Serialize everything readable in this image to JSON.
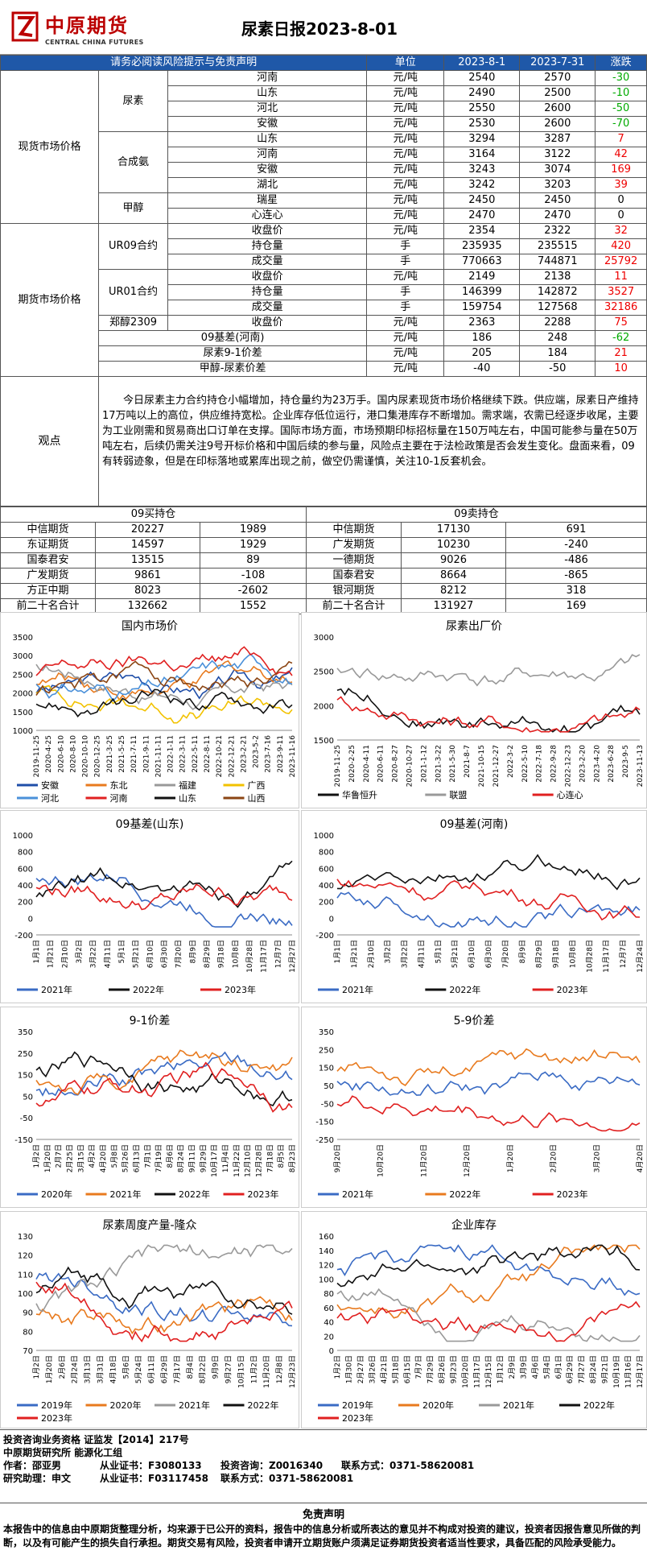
{
  "header": {
    "logo_cn": "中原期货",
    "logo_en": "CENTRAL CHINA FUTURES",
    "title": "尿素日报2023-8-01"
  },
  "table_head": {
    "notice": "请务必阅读风险提示与免责声明",
    "unit": "单位",
    "d1": "2023-8-1",
    "d2": "2023-7-31",
    "chg": "涨跌"
  },
  "spot": {
    "label": "现货市场价格",
    "groups": [
      {
        "name": "尿素",
        "rows": [
          [
            "河南",
            "元/吨",
            "2540",
            "2570",
            "-30"
          ],
          [
            "山东",
            "元/吨",
            "2490",
            "2500",
            "-10"
          ],
          [
            "河北",
            "元/吨",
            "2550",
            "2600",
            "-50"
          ],
          [
            "安徽",
            "元/吨",
            "2530",
            "2600",
            "-70"
          ]
        ]
      },
      {
        "name": "合成氨",
        "rows": [
          [
            "山东",
            "元/吨",
            "3294",
            "3287",
            "7"
          ],
          [
            "河南",
            "元/吨",
            "3164",
            "3122",
            "42"
          ],
          [
            "安徽",
            "元/吨",
            "3243",
            "3074",
            "169"
          ],
          [
            "湖北",
            "元/吨",
            "3242",
            "3203",
            "39"
          ]
        ]
      },
      {
        "name": "甲醇",
        "rows": [
          [
            "瑞星",
            "元/吨",
            "2450",
            "2450",
            "0"
          ],
          [
            "心连心",
            "元/吨",
            "2470",
            "2470",
            "0"
          ]
        ]
      }
    ]
  },
  "fut": {
    "label": "期货市场价格",
    "groups": [
      {
        "name": "UR09合约",
        "rows": [
          [
            "收盘价",
            "元/吨",
            "2354",
            "2322",
            "32"
          ],
          [
            "持仓量",
            "手",
            "235935",
            "235515",
            "420"
          ],
          [
            "成交量",
            "手",
            "770663",
            "744871",
            "25792"
          ]
        ]
      },
      {
        "name": "UR01合约",
        "rows": [
          [
            "收盘价",
            "元/吨",
            "2149",
            "2138",
            "11"
          ],
          [
            "持仓量",
            "手",
            "146399",
            "142872",
            "3527"
          ],
          [
            "成交量",
            "手",
            "159754",
            "127568",
            "32186"
          ]
        ]
      },
      {
        "name": "郑醇2309",
        "rows": [
          [
            "收盘价",
            "元/吨",
            "2363",
            "2288",
            "75"
          ]
        ]
      }
    ],
    "extra": [
      [
        "09基差(河南)",
        "元/吨",
        "186",
        "248",
        "-62"
      ],
      [
        "尿素9-1价差",
        "元/吨",
        "205",
        "184",
        "21"
      ],
      [
        "甲醇-尿素价差",
        "元/吨",
        "-40",
        "-50",
        "10"
      ]
    ]
  },
  "observation": {
    "label": "观点",
    "text": "今日尿素主力合约持仓小幅增加，持仓量约为23万手。国内尿素现货市场价格继续下跌。供应端，尿素日产维持17万吨以上的高位，供应维持宽松。企业库存低位运行，港口集港库存不断增加。需求端，农需已经逐步收尾，主要为工业刚需和贸易商出口订单在支撑。国际市场方面，市场预期印标招标量在150万吨左右，中国可能参与量在50万吨左右，后续仍需关注9号开标价格和中国后续的参与量，风险点主要在于法检政策是否会发生变化。盘面来看，09有转弱迹象，但是在印标落地或累库出现之前，做空仍需谨慎，关注10-1反套机会。"
  },
  "positions": {
    "buy_title": "09买持仓",
    "sell_title": "09卖持仓",
    "rows": [
      [
        "中信期货",
        "20227",
        "1989",
        "中信期货",
        "17130",
        "691"
      ],
      [
        "东证期货",
        "14597",
        "1929",
        "广发期货",
        "10230",
        "-240"
      ],
      [
        "国泰君安",
        "13515",
        "89",
        "一德期货",
        "9026",
        "-486"
      ],
      [
        "广发期货",
        "9861",
        "-108",
        "国泰君安",
        "8664",
        "-865"
      ],
      [
        "方正中期",
        "8023",
        "-2602",
        "银河期货",
        "8212",
        "318"
      ],
      [
        "前二十名合计",
        "132662",
        "1552",
        "前二十名合计",
        "131927",
        "169"
      ]
    ]
  },
  "charts": [
    {
      "title": "国内市场价",
      "yticks": [
        "1000",
        "1500",
        "2000",
        "2500",
        "3000",
        "3500"
      ],
      "xticks": [
        "2019-11-25",
        "2020-4-25",
        "2020-7-25",
        "2020-10-25",
        "2021-1-25",
        "2021-4-25",
        "2021-7-25",
        "2021-10-25",
        "2022-1-25",
        "2022-4-25",
        "2022-7-25",
        "2022-10-25",
        "2023-1-25",
        "2023-4-25",
        "2023-7-25",
        "2023-10-25"
      ],
      "xticks_show": [
        "2019-11-25",
        "2020-4-25",
        "2020-6-10",
        "2020-8-10",
        "2020-10-10",
        "2020-12-25",
        "2021-3-25",
        "2021-5-25",
        "2021-7-11",
        "2021-9-11",
        "2021-11-11",
        "2022-1-11",
        "2022-3-11",
        "2022-5-11",
        "2022-8-11",
        "2022-10-21",
        "2022-12-21",
        "2023-2-21",
        "2023-5-2",
        "2023-7-16",
        "2023-9-11",
        "2023-11-16"
      ],
      "legend": [
        [
          "安徽",
          "#1f4ea8"
        ],
        [
          "东北",
          "#e87a1e"
        ],
        [
          "福建",
          "#999999"
        ],
        [
          "广西",
          "#f2c200"
        ],
        [
          "河北",
          "#4a90d9"
        ],
        [
          "河南",
          "#e02020"
        ],
        [
          "山东",
          "#111111"
        ],
        [
          "山西",
          "#8b4513"
        ]
      ]
    },
    {
      "title": "尿素出厂价",
      "yticks": [
        "1500",
        "2000",
        "2500",
        "3000"
      ],
      "xticks_show": [
        "2019-11-25",
        "2020-2-25",
        "2020-4-11",
        "2020-6-11",
        "2020-8-27",
        "2020-10-27",
        "2021-1-12",
        "2021-3-22",
        "2021-5-30",
        "2021-8-7",
        "2021-10-15",
        "2021-12-27",
        "2022-3-2",
        "2022-5-10",
        "2022-7-18",
        "2022-9-28",
        "2022-12-23",
        "2023-2-20",
        "2023-4-20",
        "2023-6-28",
        "2023-9-5",
        "2023-11-13"
      ],
      "legend": [
        [
          "华鲁恒升",
          "#111111"
        ],
        [
          "联盟",
          "#999999"
        ],
        [
          "心连心",
          "#e02020"
        ]
      ]
    },
    {
      "title": "09基差(山东)",
      "yticks": [
        "-200",
        "0",
        "200",
        "400",
        "600",
        "800",
        "1000"
      ],
      "xticks_show": [
        "1月1日",
        "1月21日",
        "2月10日",
        "3月2日",
        "3月22日",
        "4月11日",
        "5月1日",
        "5月21日",
        "6月10日",
        "6月30日",
        "7月20日",
        "8月9日",
        "8月29日",
        "9月18日",
        "10月8日",
        "10月28日",
        "11月17日",
        "12月7日",
        "12月27日"
      ],
      "legend": [
        [
          "2021年",
          "#3a6bc4"
        ],
        [
          "2022年",
          "#111111"
        ],
        [
          "2023年",
          "#e02020"
        ]
      ]
    },
    {
      "title": "09基差(河南)",
      "yticks": [
        "-200",
        "0",
        "200",
        "400",
        "600",
        "800",
        "1000"
      ],
      "xticks_show": [
        "1月1日",
        "1月21日",
        "2月10日",
        "3月2日",
        "3月22日",
        "4月11日",
        "5月1日",
        "5月21日",
        "6月10日",
        "6月30日",
        "7月20日",
        "8月9日",
        "8月29日",
        "9月18日",
        "10月8日",
        "10月28日",
        "11月17日",
        "12月7日",
        "12月24日"
      ],
      "legend": [
        [
          "2021年",
          "#3a6bc4"
        ],
        [
          "2022年",
          "#111111"
        ],
        [
          "2023年",
          "#e02020"
        ]
      ]
    },
    {
      "title": "9-1价差",
      "yticks": [
        "-150",
        "-50",
        "50",
        "150",
        "250",
        "350"
      ],
      "xticks_show": [
        "1月2日",
        "1月20日",
        "2月7日",
        "2月25日",
        "3月15日",
        "4月2日",
        "4月20日",
        "5月8日",
        "5月26日",
        "6月13日",
        "7月1日",
        "7月19日",
        "8月6日",
        "8月24日",
        "9月11日",
        "9月29日",
        "10月17日",
        "11月4日",
        "11月22日",
        "12月10日",
        "12月28日",
        "7月18日",
        "8月5日",
        "8月23日"
      ],
      "legend": [
        [
          "2020年",
          "#3a6bc4"
        ],
        [
          "2021年",
          "#e87a1e"
        ],
        [
          "2022年",
          "#111111"
        ],
        [
          "2023年",
          "#e02020"
        ]
      ]
    },
    {
      "title": "5-9价差",
      "yticks": [
        "-250",
        "-150",
        "-50",
        "50",
        "150",
        "250",
        "350"
      ],
      "xticks_show": [
        "9月20日",
        "10月20日",
        "11月20日",
        "12月20日",
        "1月20日",
        "2月20日",
        "3月20日",
        "4月20日"
      ],
      "legend": [
        [
          "2021年",
          "#3a6bc4"
        ],
        [
          "2022年",
          "#e87a1e"
        ],
        [
          "2023年",
          "#e02020"
        ]
      ]
    },
    {
      "title": "尿素周度产量-隆众",
      "yticks": [
        "70",
        "80",
        "90",
        "100",
        "110",
        "120",
        "130"
      ],
      "xticks_show": [
        "1月2日",
        "1月20日",
        "2月6日",
        "2月24日",
        "3月13日",
        "3月31日",
        "4月18日",
        "5月6日",
        "5月24日",
        "6月11日",
        "6月29日",
        "7月17日",
        "8月4日",
        "8月22日",
        "9月9日",
        "9月27日",
        "10月15日",
        "11月2日",
        "11月20日",
        "12月8日",
        "12月23日"
      ],
      "legend": [
        [
          "2019年",
          "#3a6bc4"
        ],
        [
          "2020年",
          "#e87a1e"
        ],
        [
          "2021年",
          "#999999"
        ],
        [
          "2022年",
          "#111111"
        ],
        [
          "2023年",
          "#e02020"
        ]
      ]
    },
    {
      "title": "企业库存",
      "yticks": [
        "0",
        "20",
        "40",
        "60",
        "80",
        "100",
        "120",
        "140",
        "160"
      ],
      "xticks_show": [
        "1月2日",
        "1月30日",
        "2月27日",
        "3月26日",
        "4月21日",
        "5月18日",
        "6月15日",
        "7月7日",
        "7月29日",
        "8月26日",
        "9月23日",
        "10月20日",
        "11月17日",
        "12月15日",
        "1月12日",
        "2月9日",
        "3月9日",
        "4月6日",
        "5月4日",
        "6月1日",
        "6月29日",
        "7月27日",
        "8月24日",
        "9月21日",
        "10月19日",
        "11月16日",
        "12月17日"
      ],
      "legend": [
        [
          "2019年",
          "#3a6bc4"
        ],
        [
          "2020年",
          "#e87a1e"
        ],
        [
          "2021年",
          "#999999"
        ],
        [
          "2022年",
          "#111111"
        ],
        [
          "2023年",
          "#e02020"
        ]
      ]
    }
  ],
  "footer": {
    "l1": "投资咨询业务资格  证监发【2014】217号",
    "l2": "中原期货研究所   能源化工组",
    "a1": "作者：邵亚男",
    "a1b": "从业证书：F3080133",
    "a1c": "投资咨询：Z0016340",
    "a1d": "联系方式：0371-58620081",
    "a2": "研究助理：申文",
    "a2b": "从业证书：F03117458",
    "a2d": "联系方式：0371-58620081",
    "disc_title": "免责声明",
    "disc_text": "本报告中的信息由中原期货整理分析，均来源于已公开的资料，报告中的信息分析或所表达的意见并不构成对投资的建议，投资者因报告意见所做的判断，以及有可能产生的损失自行承担。期货交易有风险，投资者申请开立期货账户须满足证券期货投资者适当性要求，具备匹配的风险承受能力。"
  }
}
